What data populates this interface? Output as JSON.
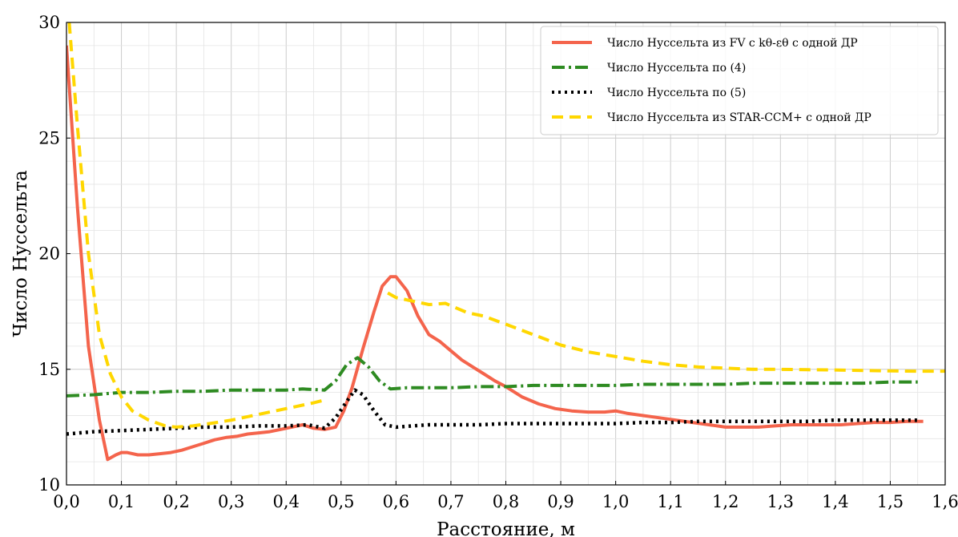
{
  "chart_data": {
    "type": "line",
    "xlabel": "Расстояние, м",
    "ylabel": "Число Нуссельта",
    "xlim": [
      0,
      1.6
    ],
    "ylim": [
      10,
      30
    ],
    "xticks": [
      "0,0",
      "0,1",
      "0,2",
      "0,3",
      "0,4",
      "0,5",
      "0,6",
      "0,7",
      "0,8",
      "0,9",
      "1,0",
      "1,1",
      "1,2",
      "1,3",
      "1,4",
      "1,5",
      "1,6"
    ],
    "yticks": [
      "10",
      "15",
      "20",
      "25",
      "30"
    ],
    "grid": true,
    "legend_position": "top-right",
    "series": [
      {
        "name": "Число Нуссельта из FV с kθ-εθ с одной ДР",
        "color": "#f4644c",
        "style": "solid",
        "x": [
          0.0,
          0.02,
          0.04,
          0.06,
          0.075,
          0.09,
          0.1,
          0.11,
          0.13,
          0.15,
          0.17,
          0.19,
          0.21,
          0.23,
          0.25,
          0.27,
          0.29,
          0.31,
          0.33,
          0.35,
          0.37,
          0.39,
          0.41,
          0.43,
          0.45,
          0.47,
          0.49,
          0.505,
          0.52,
          0.54,
          0.56,
          0.575,
          0.59,
          0.6,
          0.62,
          0.64,
          0.66,
          0.68,
          0.7,
          0.72,
          0.74,
          0.76,
          0.78,
          0.8,
          0.83,
          0.86,
          0.89,
          0.92,
          0.95,
          0.98,
          1.0,
          1.02,
          1.05,
          1.08,
          1.11,
          1.14,
          1.17,
          1.2,
          1.23,
          1.26,
          1.29,
          1.32,
          1.35,
          1.38,
          1.41,
          1.44,
          1.47,
          1.5,
          1.53,
          1.56
        ],
        "y": [
          29.0,
          22.0,
          16.0,
          12.8,
          11.1,
          11.3,
          11.4,
          11.4,
          11.3,
          11.3,
          11.35,
          11.4,
          11.5,
          11.65,
          11.8,
          11.95,
          12.05,
          12.1,
          12.2,
          12.25,
          12.3,
          12.4,
          12.5,
          12.6,
          12.45,
          12.4,
          12.5,
          13.2,
          14.2,
          15.9,
          17.5,
          18.6,
          19.0,
          19.0,
          18.4,
          17.3,
          16.5,
          16.2,
          15.8,
          15.4,
          15.1,
          14.8,
          14.5,
          14.25,
          13.8,
          13.5,
          13.3,
          13.2,
          13.15,
          13.15,
          13.2,
          13.1,
          13.0,
          12.9,
          12.8,
          12.7,
          12.6,
          12.5,
          12.5,
          12.5,
          12.55,
          12.6,
          12.6,
          12.6,
          12.6,
          12.65,
          12.7,
          12.7,
          12.75,
          12.75
        ]
      },
      {
        "name": "Число Нуссельта по (4)",
        "color": "#2e8b22",
        "style": "dashdot",
        "x": [
          0.0,
          0.05,
          0.1,
          0.15,
          0.2,
          0.25,
          0.3,
          0.35,
          0.4,
          0.43,
          0.47,
          0.49,
          0.51,
          0.53,
          0.55,
          0.57,
          0.59,
          0.62,
          0.65,
          0.7,
          0.75,
          0.8,
          0.85,
          0.9,
          0.95,
          1.0,
          1.05,
          1.1,
          1.15,
          1.2,
          1.25,
          1.3,
          1.35,
          1.4,
          1.45,
          1.5,
          1.55
        ],
        "y": [
          13.85,
          13.9,
          14.0,
          14.0,
          14.05,
          14.05,
          14.1,
          14.1,
          14.1,
          14.15,
          14.1,
          14.5,
          15.2,
          15.5,
          15.1,
          14.5,
          14.15,
          14.2,
          14.2,
          14.2,
          14.25,
          14.25,
          14.3,
          14.3,
          14.3,
          14.3,
          14.35,
          14.35,
          14.35,
          14.35,
          14.4,
          14.4,
          14.4,
          14.4,
          14.4,
          14.45,
          14.45
        ]
      },
      {
        "name": "Число Нуссельта по (5)",
        "color": "#000000",
        "style": "dotted",
        "x": [
          0.0,
          0.05,
          0.1,
          0.15,
          0.2,
          0.25,
          0.3,
          0.35,
          0.4,
          0.44,
          0.47,
          0.49,
          0.51,
          0.525,
          0.54,
          0.56,
          0.58,
          0.6,
          0.63,
          0.66,
          0.7,
          0.75,
          0.8,
          0.85,
          0.9,
          0.95,
          1.0,
          1.05,
          1.1,
          1.15,
          1.2,
          1.25,
          1.3,
          1.35,
          1.4,
          1.45,
          1.5,
          1.55
        ],
        "y": [
          12.2,
          12.3,
          12.35,
          12.4,
          12.45,
          12.5,
          12.5,
          12.55,
          12.55,
          12.6,
          12.45,
          12.9,
          13.6,
          14.1,
          13.9,
          13.2,
          12.6,
          12.5,
          12.55,
          12.6,
          12.6,
          12.6,
          12.65,
          12.65,
          12.65,
          12.65,
          12.65,
          12.7,
          12.7,
          12.75,
          12.75,
          12.75,
          12.75,
          12.75,
          12.8,
          12.8,
          12.8,
          12.8
        ]
      },
      {
        "name": "Число Нуссельта из STAR-CCM+ с одной ДР",
        "color": "#ffd700",
        "style": "dashed",
        "x": [
          0.005,
          0.02,
          0.04,
          0.06,
          0.08,
          0.1,
          0.12,
          0.15,
          0.18,
          0.2,
          0.23,
          0.26,
          0.3,
          0.35,
          0.4,
          0.45,
          0.475,
          null,
          0.585,
          0.6,
          0.63,
          0.66,
          0.69,
          0.7,
          0.73,
          0.76,
          0.8,
          0.85,
          0.9,
          0.95,
          1.0,
          1.05,
          1.1,
          1.15,
          1.2,
          1.25,
          1.3,
          1.35,
          1.4,
          1.45,
          1.5,
          1.55,
          1.6
        ],
        "y": [
          30.0,
          25.5,
          20.0,
          16.5,
          14.8,
          13.8,
          13.2,
          12.8,
          12.55,
          12.5,
          12.55,
          12.65,
          12.8,
          13.05,
          13.3,
          13.55,
          13.7,
          null,
          18.3,
          18.1,
          17.95,
          17.8,
          17.85,
          17.75,
          17.45,
          17.3,
          16.95,
          16.5,
          16.05,
          15.75,
          15.55,
          15.35,
          15.2,
          15.1,
          15.05,
          15.0,
          15.0,
          14.98,
          14.97,
          14.95,
          14.93,
          14.92,
          14.92
        ]
      }
    ]
  }
}
